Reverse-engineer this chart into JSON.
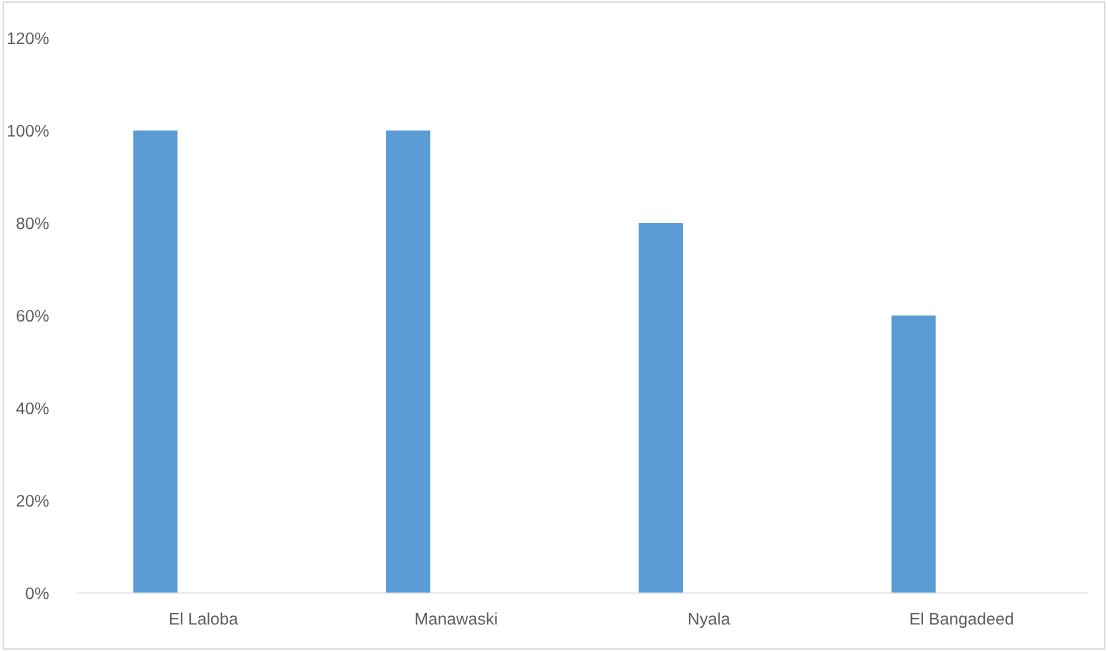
{
  "chart_data": {
    "type": "bar",
    "categories": [
      "El Laloba",
      "Manawaski",
      "Nyala",
      "El Bangadeed"
    ],
    "values": [
      100,
      100,
      80,
      60
    ],
    "color": "#5b9bd5",
    "ylim": [
      0,
      120
    ],
    "yticks": [
      {
        "value": 0,
        "label": "0%"
      },
      {
        "value": 20,
        "label": "20%"
      },
      {
        "value": 40,
        "label": "40%"
      },
      {
        "value": 60,
        "label": "60%"
      },
      {
        "value": 80,
        "label": "80%"
      },
      {
        "value": 100,
        "label": "100%"
      },
      {
        "value": 120,
        "label": "120%"
      }
    ],
    "grid": false,
    "legend": false
  }
}
